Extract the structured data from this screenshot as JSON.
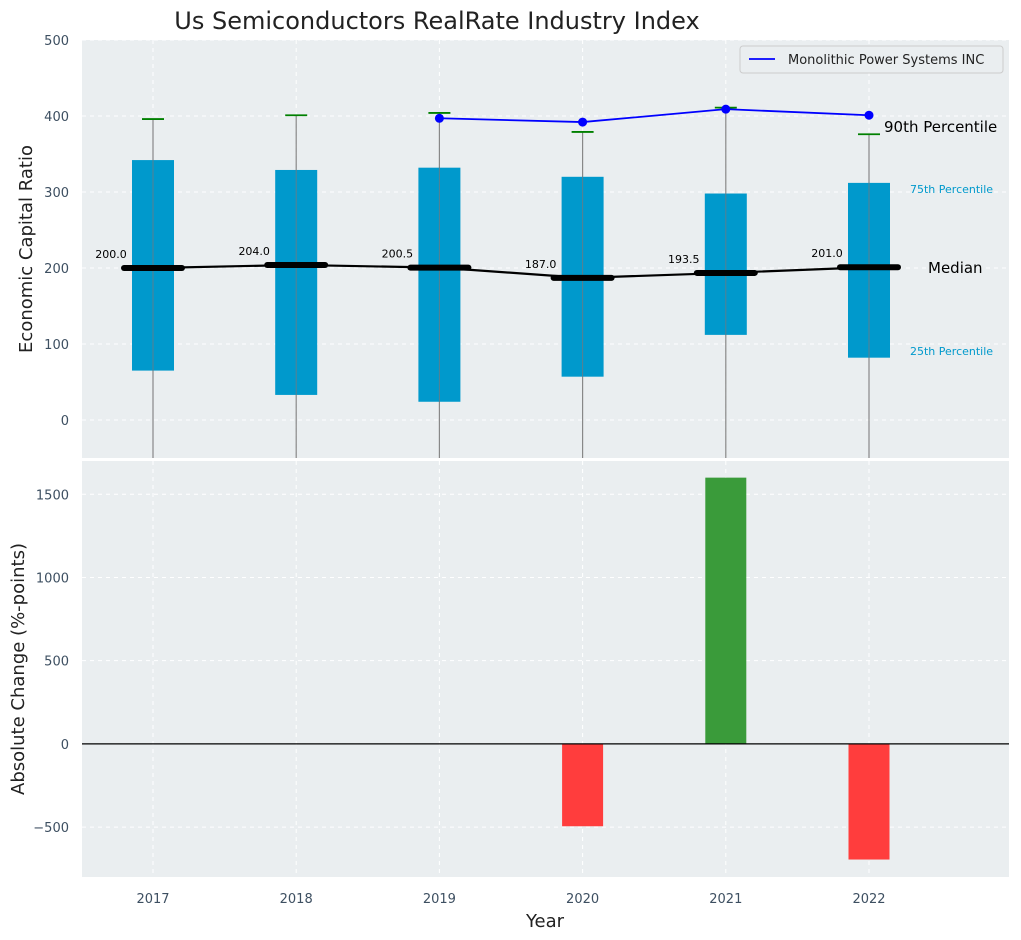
{
  "title": "Us Semiconductors RealRate Industry Index",
  "colors": {
    "panel_bg": "#eaeef0",
    "box": "#0099cc",
    "median": "#000000",
    "whisker": "#888888",
    "cap": "#008000",
    "company": "#0000ff",
    "increase": "#3a9b3a",
    "decrease": "#ff3d3d"
  },
  "chart_data": [
    {
      "type": "box",
      "ylabel": "Economic Capital Ratio",
      "ylim": [
        -50,
        500
      ],
      "yticks": [
        0,
        100,
        200,
        300,
        400,
        500
      ],
      "categories": [
        "2017",
        "2018",
        "2019",
        "2020",
        "2021",
        "2022"
      ],
      "p25": [
        65,
        33,
        24,
        57,
        112,
        82
      ],
      "median": [
        200.0,
        204.0,
        200.5,
        187.0,
        193.5,
        201.0
      ],
      "median_labels": [
        "200.0",
        "204.0",
        "200.5",
        "187.0",
        "193.5",
        "201.0"
      ],
      "p75": [
        342,
        329,
        332,
        320,
        298,
        312
      ],
      "p90": [
        396,
        401,
        404,
        379,
        411,
        376
      ],
      "company": {
        "name": "Monolithic Power Systems INC",
        "categories": [
          "2019",
          "2020",
          "2021",
          "2022"
        ],
        "values": [
          397,
          392,
          409,
          401
        ]
      },
      "annotations": {
        "p90": "90th Percentile",
        "p75": "75th Percentile",
        "median": "Median",
        "p25": "25th Percentile"
      },
      "legend_position": "top-right"
    },
    {
      "type": "bar",
      "ylabel": "Absolute Change (%-points)",
      "xlabel": "Year",
      "ylim": [
        -800,
        1700
      ],
      "yticks": [
        -500,
        0,
        500,
        1000,
        1500
      ],
      "ytick_labels": [
        "−500",
        "0",
        "500",
        "1000",
        "1500"
      ],
      "categories": [
        "2017",
        "2018",
        "2019",
        "2020",
        "2021",
        "2022"
      ],
      "values": [
        0,
        0,
        0,
        -495,
        1600,
        -695
      ]
    }
  ]
}
